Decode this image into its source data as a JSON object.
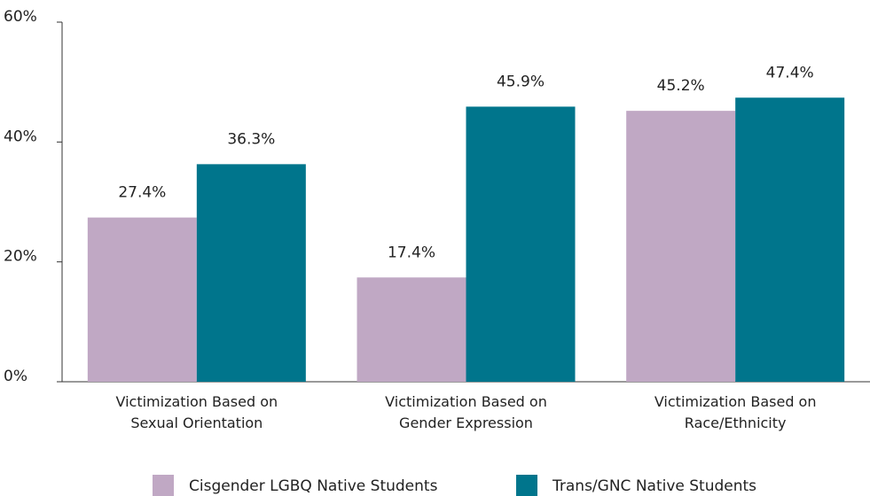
{
  "chart_data": {
    "type": "bar",
    "categories": [
      "Victimization Based on Sexual Orientation",
      "Victimization Based on Gender Expression",
      "Victimization Based on Race/Ethnicity"
    ],
    "series": [
      {
        "name": "Cisgender LGBQ Native Students",
        "color": "#c0a8c4",
        "values": [
          27.4,
          17.4,
          45.2
        ],
        "value_labels": [
          "27.4%",
          "17.4%",
          "45.2%"
        ]
      },
      {
        "name": "Trans/GNC Native Students",
        "color": "#00758c",
        "values": [
          36.3,
          45.9,
          47.4
        ],
        "value_labels": [
          "36.3%",
          "45.9%",
          "47.4%"
        ]
      }
    ],
    "ylim": [
      0,
      60
    ],
    "yticks": [
      {
        "value": 0,
        "label": "0%"
      },
      {
        "value": 20,
        "label": "20%"
      },
      {
        "value": 40,
        "label": "40%"
      },
      {
        "value": 60,
        "label": "60%"
      }
    ],
    "legend": "bottom"
  }
}
